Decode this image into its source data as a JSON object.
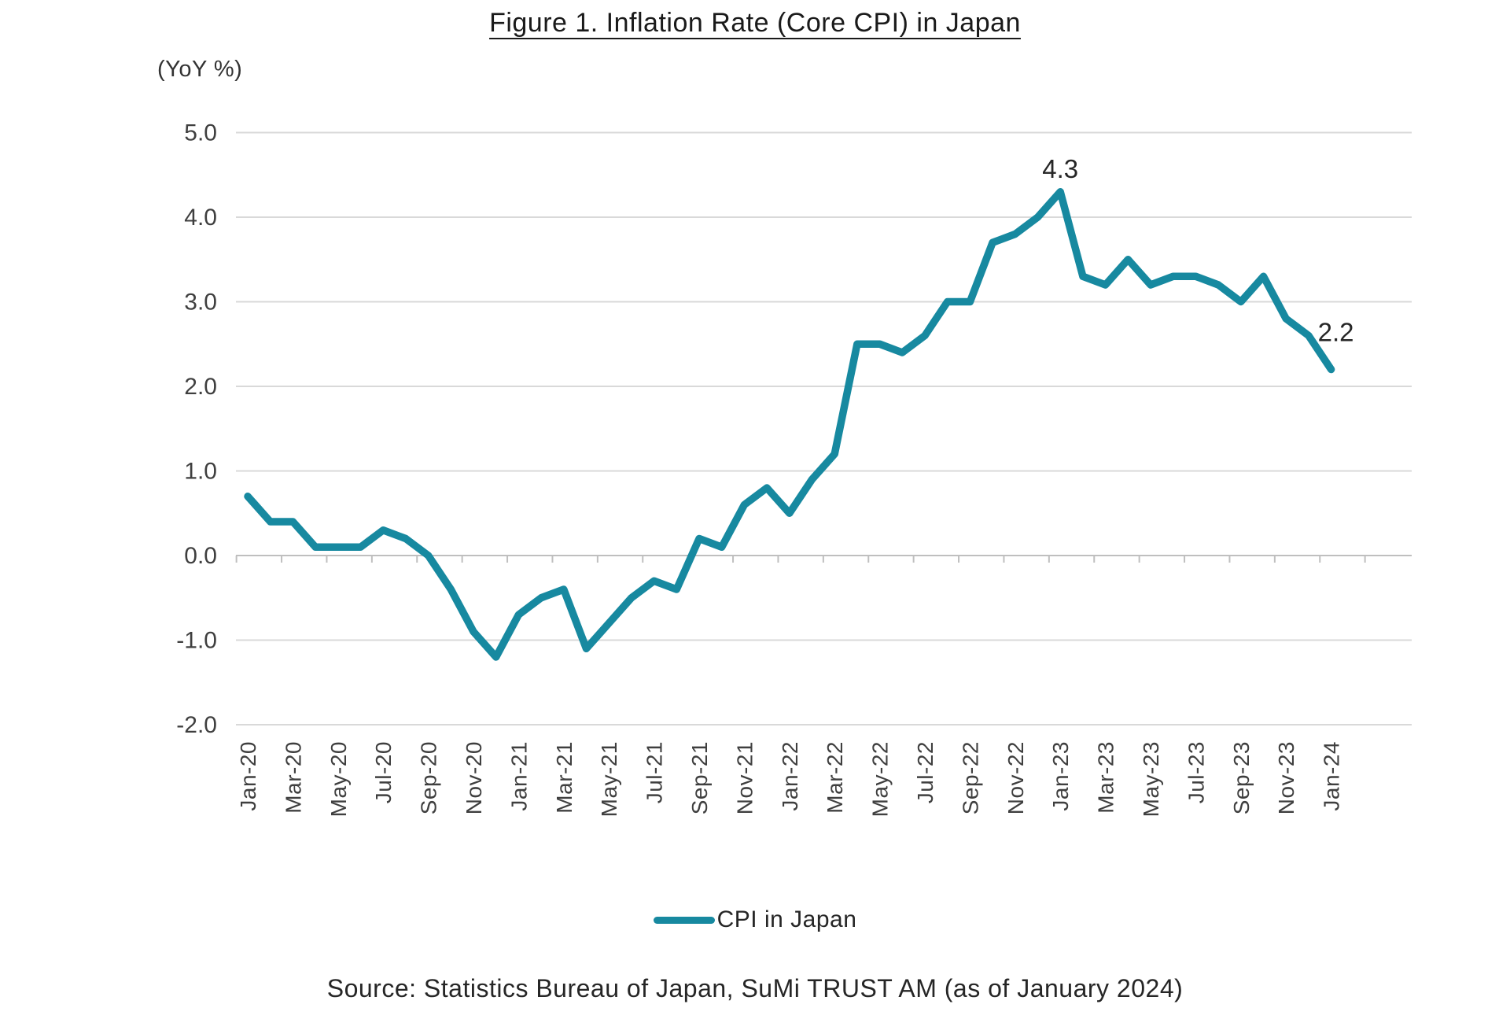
{
  "title": "Figure 1. Inflation Rate (Core CPI) in Japan",
  "y_axis_unit_label": "(YoY %)",
  "legend": {
    "label": "CPI in Japan"
  },
  "source": "Source: Statistics Bureau of Japan, SuMi TRUST AM (as of January 2024)",
  "colors": {
    "line": "#1789A0",
    "grid": "#D9D9D9",
    "axis": "#BFBFBF",
    "tick_text": "#3F3F3F",
    "annotation_text": "#262626"
  },
  "chart_data": {
    "type": "line",
    "title": "Figure 1. Inflation Rate (Core CPI) in Japan",
    "xlabel": "",
    "ylabel": "(YoY %)",
    "ylim": [
      -2.0,
      5.0
    ],
    "y_ticks": [
      5.0,
      4.0,
      3.0,
      2.0,
      1.0,
      0.0,
      -1.0,
      -2.0
    ],
    "grid": "horizontal",
    "legend_position": "bottom",
    "x_label_interval": 2,
    "x": [
      "Jan-20",
      "Feb-20",
      "Mar-20",
      "Apr-20",
      "May-20",
      "Jun-20",
      "Jul-20",
      "Aug-20",
      "Sep-20",
      "Oct-20",
      "Nov-20",
      "Dec-20",
      "Jan-21",
      "Feb-21",
      "Mar-21",
      "Apr-21",
      "May-21",
      "Jun-21",
      "Jul-21",
      "Aug-21",
      "Sep-21",
      "Oct-21",
      "Nov-21",
      "Dec-21",
      "Jan-22",
      "Feb-22",
      "Mar-22",
      "Apr-22",
      "May-22",
      "Jun-22",
      "Jul-22",
      "Aug-22",
      "Sep-22",
      "Oct-22",
      "Nov-22",
      "Dec-22",
      "Jan-23",
      "Feb-23",
      "Mar-23",
      "Apr-23",
      "May-23",
      "Jun-23",
      "Jul-23",
      "Aug-23",
      "Sep-23",
      "Oct-23",
      "Nov-23",
      "Dec-23",
      "Jan-24"
    ],
    "series": [
      {
        "name": "CPI in Japan",
        "color": "#1789A0",
        "values": [
          0.7,
          0.4,
          0.4,
          0.1,
          0.1,
          0.1,
          0.3,
          0.2,
          0.0,
          -0.4,
          -0.9,
          -1.2,
          -0.7,
          -0.5,
          -0.4,
          -1.1,
          -0.8,
          -0.5,
          -0.3,
          -0.4,
          0.2,
          0.1,
          0.6,
          0.8,
          0.5,
          0.9,
          1.2,
          2.5,
          2.5,
          2.4,
          2.6,
          3.0,
          3.0,
          3.7,
          3.8,
          4.0,
          4.3,
          3.3,
          3.2,
          3.5,
          3.2,
          3.3,
          3.3,
          3.2,
          3.0,
          3.3,
          2.8,
          2.6,
          2.2
        ]
      }
    ],
    "annotations": [
      {
        "text": "4.3",
        "index": 36,
        "placement": "above"
      },
      {
        "text": "2.2",
        "index": 48,
        "placement": "above-right"
      }
    ]
  }
}
